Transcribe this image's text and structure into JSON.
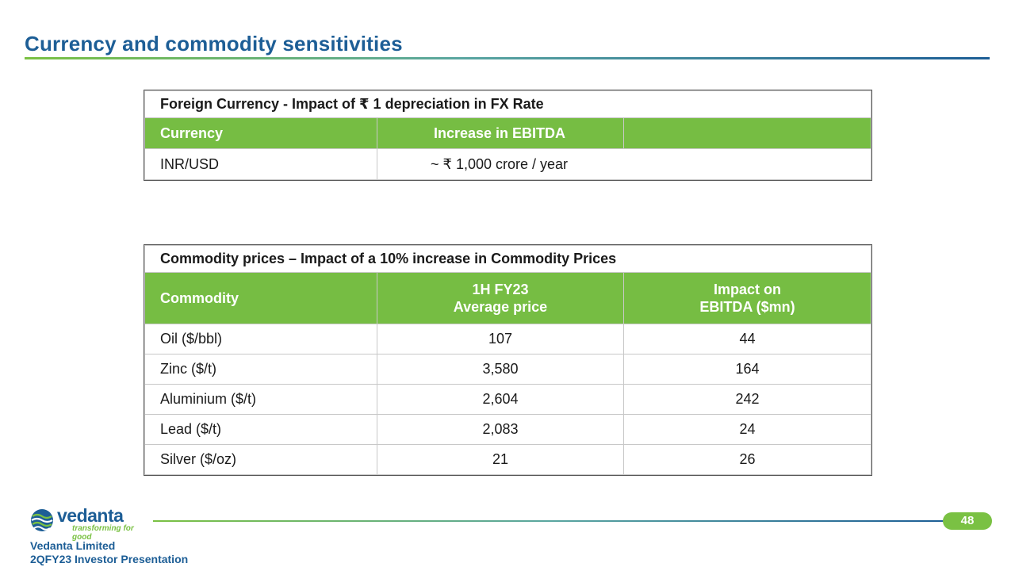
{
  "slide": {
    "title": "Currency and commodity sensitivities",
    "page_number": "48"
  },
  "fx_table": {
    "caption": "Foreign Currency - Impact of  ₹ 1 depreciation in FX Rate",
    "headers": [
      "Currency",
      "Increase in EBITDA",
      ""
    ],
    "rows": [
      [
        "INR/USD",
        "~ ₹ 1,000 crore / year"
      ]
    ]
  },
  "commodity_table": {
    "caption": "Commodity prices – Impact of a 10% increase in Commodity Prices",
    "headers": {
      "commodity": "Commodity",
      "price_line1": "1H FY23",
      "price_line2": "Average price",
      "impact_line1": "Impact on",
      "impact_line2": "EBITDA ($mn)"
    },
    "rows": [
      [
        "Oil ($/bbl)",
        "107",
        "44"
      ],
      [
        "Zinc ($/t)",
        "3,580",
        "164"
      ],
      [
        "Aluminium ($/t)",
        "2,604",
        "242"
      ],
      [
        "Lead ($/t)",
        "2,083",
        "24"
      ],
      [
        "Silver ($/oz)",
        "21",
        "26"
      ]
    ]
  },
  "footer": {
    "logo_word": "vedanta",
    "logo_tagline": "transforming for good",
    "company": "Vedanta Limited",
    "presentation": "2QFY23 Investor Presentation"
  },
  "colors": {
    "brand_blue": "#1d5e96",
    "brand_green": "#7ac143",
    "header_green": "#76bd43"
  }
}
